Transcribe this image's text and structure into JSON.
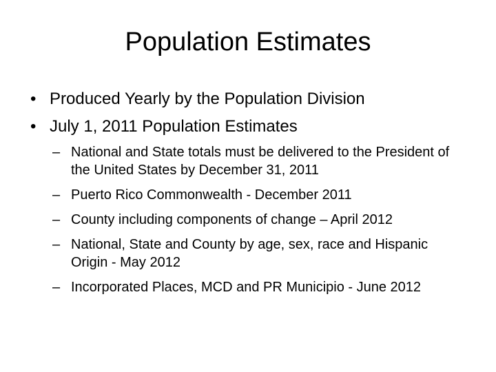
{
  "slide": {
    "title": "Population Estimates",
    "bullets": [
      {
        "text": "Produced Yearly by the Population Division"
      },
      {
        "text": "July 1, 2011 Population Estimates"
      }
    ],
    "subbullets": [
      {
        "text": "National and State totals must be delivered to the President of the United States by December 31, 2011"
      },
      {
        "text": "Puerto Rico Commonwealth -  December 2011"
      },
      {
        "text": "County including components of change – April 2012"
      },
      {
        "text": "National, State and County by age, sex, race and Hispanic Origin  - May 2012"
      },
      {
        "text": "Incorporated Places, MCD and PR Municipio -  June 2012"
      }
    ],
    "bullet_glyph": "•",
    "dash_glyph": "–"
  }
}
